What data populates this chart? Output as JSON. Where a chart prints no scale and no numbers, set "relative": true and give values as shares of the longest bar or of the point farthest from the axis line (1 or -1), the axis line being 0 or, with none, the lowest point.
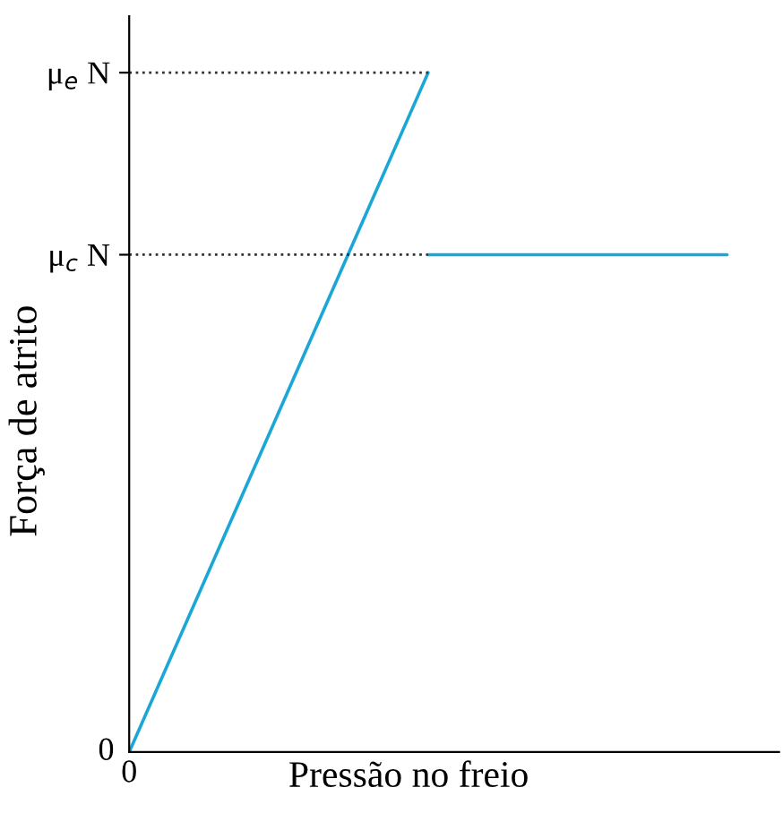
{
  "chart_data": {
    "type": "line",
    "relative": true,
    "xlabel": "Pressão no freio",
    "ylabel": "Força de atrito",
    "categories": [
      null,
      null,
      null
    ],
    "series": [
      {
        "color": "#1aa7d6",
        "values": [
          0,
          1,
          null
        ]
      },
      {
        "color": "#1aa7d6",
        "values": [
          null,
          0.732,
          0.732
        ]
      }
    ],
    "annotations": [
      "0",
      "0"
    ],
    "ref_lines": [
      {
        "axis": "y",
        "value": 1,
        "label": "μ$_{e}$ N",
        "color": "#333333",
        "line_style": "dotted"
      },
      {
        "axis": "y",
        "value": 0.732,
        "label": "μ$_{c}$ N",
        "color": "#333333",
        "line_style": "dotted"
      }
    ],
    "grid": false,
    "legend": false,
    "marker": "none",
    "line_style": "solid"
  }
}
